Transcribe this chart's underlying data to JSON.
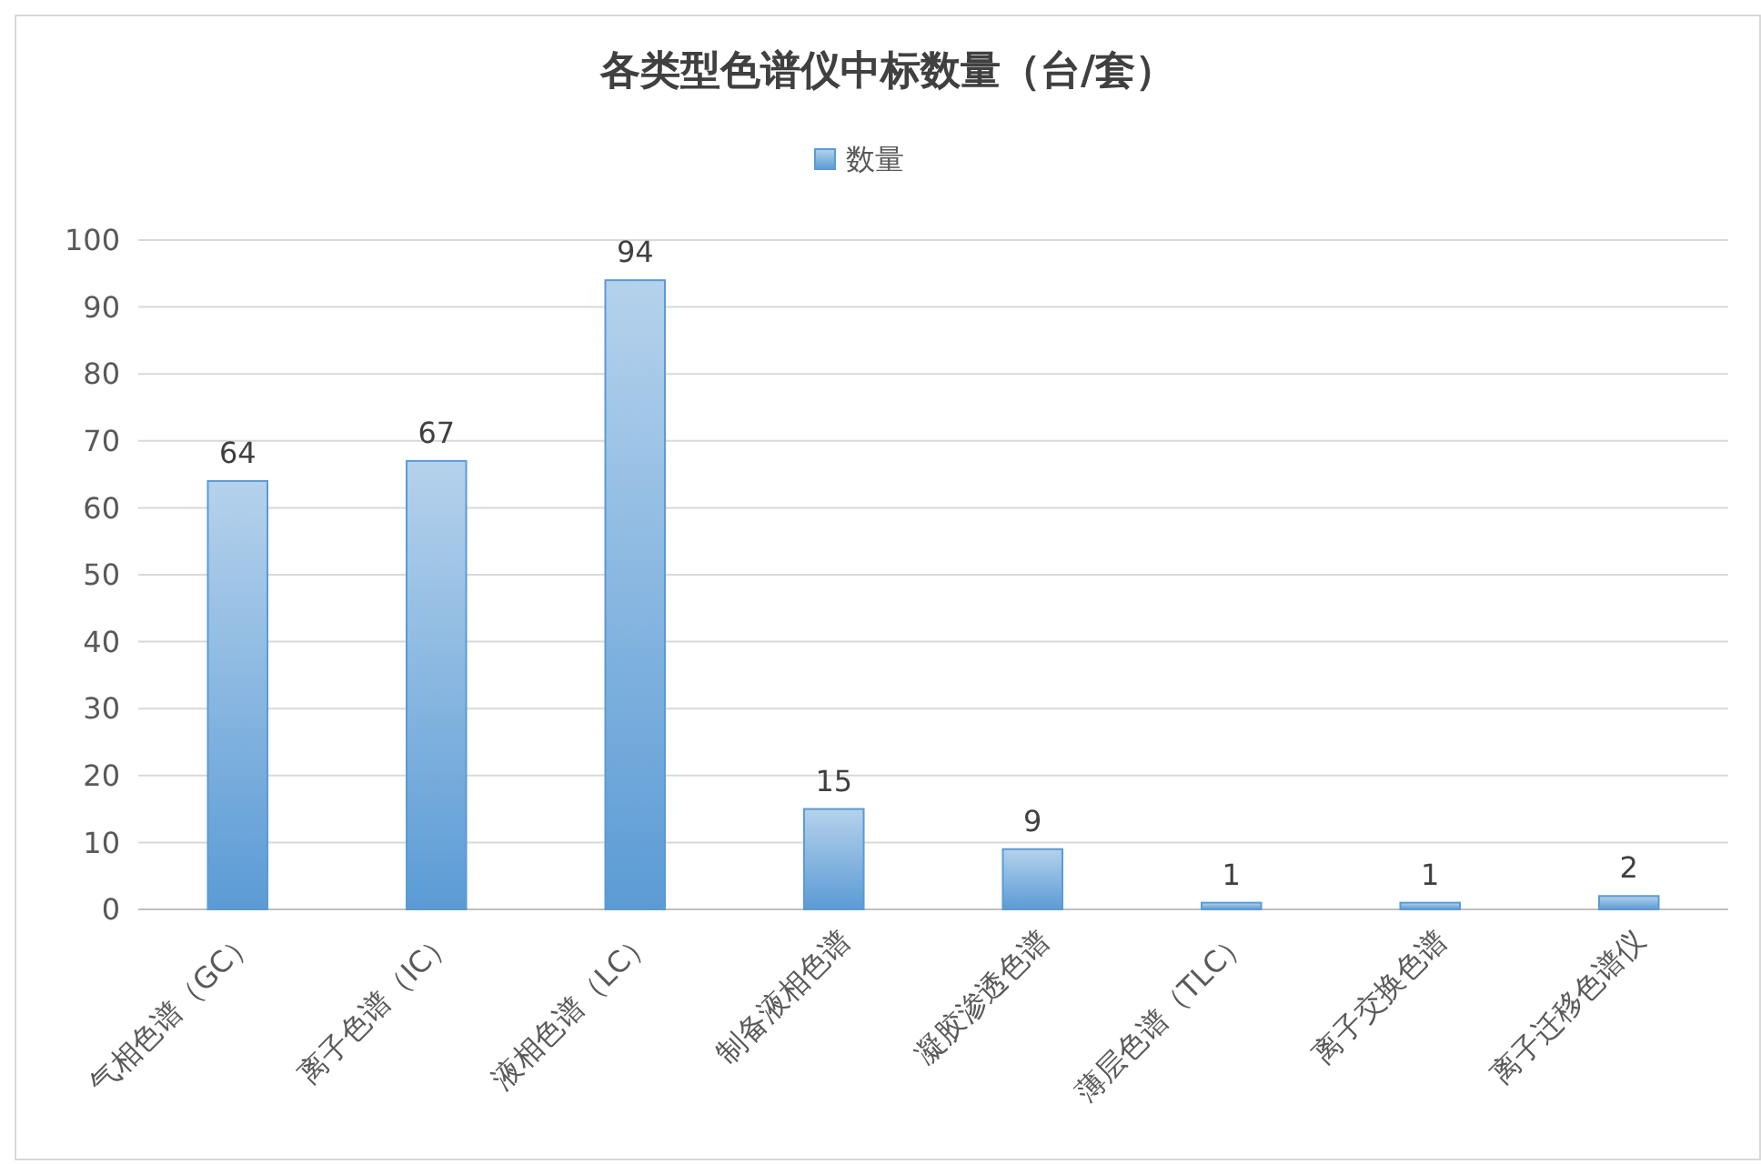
{
  "chart_data": {
    "type": "bar",
    "title": "各类型色谱仪中标数量（台/套）",
    "categories": [
      "气相色谱（GC）",
      "离子色谱（IC）",
      "液相色谱（LC）",
      "制备液相色谱",
      "凝胶渗透色谱",
      "薄层色谱（TLC）",
      "离子交换色谱",
      "离子迁移色谱仪"
    ],
    "series": [
      {
        "name": "数量",
        "color": "#5b9bd5",
        "values": [
          64,
          67,
          94,
          15,
          9,
          1,
          1,
          2
        ]
      }
    ],
    "ylim": [
      0,
      100
    ],
    "yticks": [
      0,
      10,
      20,
      30,
      40,
      50,
      60,
      70,
      80,
      90,
      100
    ],
    "grid": "y",
    "legend": "top",
    "data_labels": true
  }
}
